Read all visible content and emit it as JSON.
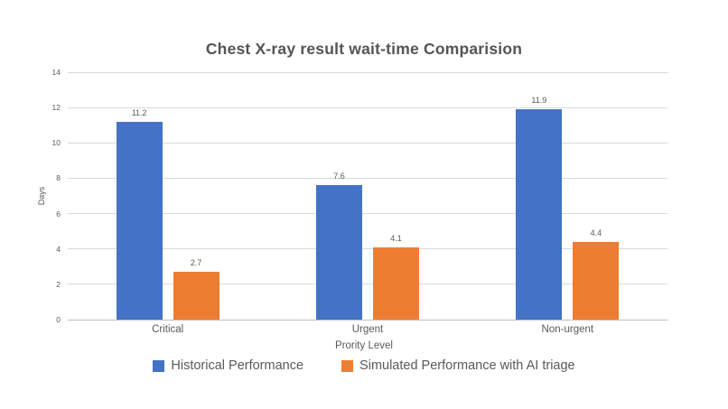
{
  "page": {
    "background": "#ffffff"
  },
  "chart_data": {
    "type": "bar",
    "title": "Chest X-ray result wait-time Comparision",
    "categories": [
      "Critical",
      "Urgent",
      "Non-urgent"
    ],
    "series": [
      {
        "name": "Historical Performance",
        "color": "#4472C4",
        "values": [
          11.2,
          7.6,
          11.9
        ]
      },
      {
        "name": "Simulated Performance with AI triage",
        "color": "#ED7D31",
        "values": [
          2.7,
          4.1,
          4.4
        ]
      }
    ],
    "xlabel": "Prority Level",
    "ylabel": "Days",
    "ylim": [
      0,
      14
    ],
    "yticks": [
      0,
      2,
      4,
      6,
      8,
      10,
      12,
      14
    ],
    "grid": true,
    "legend_position": "bottom",
    "data_labels": true
  },
  "colors": {
    "gridline": "#D9D9D9",
    "axis_line": "#BFBFBF",
    "text": "#595959",
    "title_text": "#555555"
  }
}
